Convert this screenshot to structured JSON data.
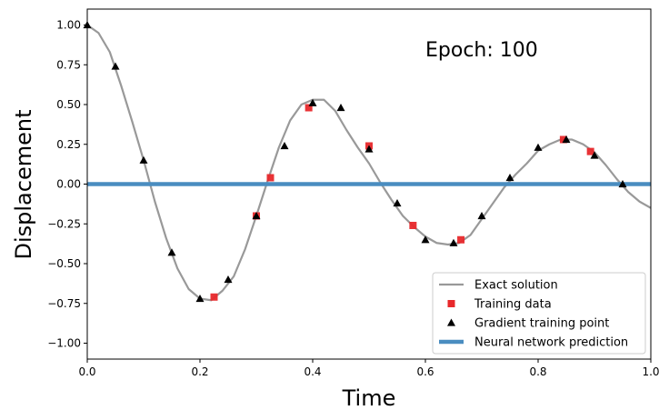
{
  "chart_data": {
    "type": "line",
    "xlabel": "Time",
    "ylabel": "Displacement",
    "xlim": [
      0.0,
      1.0
    ],
    "ylim": [
      -1.1,
      1.1
    ],
    "xticks": [
      "0.0",
      "0.2",
      "0.4",
      "0.6",
      "0.8",
      "1.0"
    ],
    "yticks": [
      "-1.00",
      "-0.75",
      "-0.50",
      "-0.25",
      "0.00",
      "0.25",
      "0.50",
      "0.75",
      "1.00"
    ],
    "annotation": "Epoch: 100",
    "grid": false,
    "legend_position": "lower-right",
    "series": [
      {
        "name": "Exact solution",
        "kind": "line",
        "color": "#999999",
        "x": [
          0.0,
          0.02,
          0.04,
          0.06,
          0.08,
          0.1,
          0.12,
          0.14,
          0.16,
          0.18,
          0.2,
          0.22,
          0.24,
          0.26,
          0.28,
          0.3,
          0.32,
          0.34,
          0.36,
          0.38,
          0.4,
          0.42,
          0.44,
          0.46,
          0.48,
          0.5,
          0.52,
          0.54,
          0.56,
          0.58,
          0.6,
          0.62,
          0.64,
          0.66,
          0.68,
          0.7,
          0.72,
          0.74,
          0.76,
          0.78,
          0.8,
          0.82,
          0.84,
          0.86,
          0.88,
          0.9,
          0.92,
          0.94,
          0.96,
          0.98,
          1.0
        ],
        "y": [
          1.0,
          0.95,
          0.83,
          0.62,
          0.39,
          0.15,
          -0.11,
          -0.34,
          -0.53,
          -0.66,
          -0.72,
          -0.73,
          -0.67,
          -0.58,
          -0.41,
          -0.2,
          0.02,
          0.23,
          0.4,
          0.5,
          0.53,
          0.53,
          0.46,
          0.34,
          0.23,
          0.13,
          0.01,
          -0.1,
          -0.2,
          -0.27,
          -0.33,
          -0.37,
          -0.38,
          -0.37,
          -0.32,
          -0.22,
          -0.12,
          -0.02,
          0.06,
          0.13,
          0.21,
          0.25,
          0.28,
          0.28,
          0.25,
          0.2,
          0.12,
          0.03,
          -0.05,
          -0.11,
          -0.15
        ]
      },
      {
        "name": "Training data",
        "kind": "square",
        "color": "#e8282b",
        "x": [
          0.225,
          0.3,
          0.325,
          0.393,
          0.5,
          0.578,
          0.663,
          0.845,
          0.893
        ],
        "y": [
          -0.71,
          -0.2,
          0.04,
          0.48,
          0.24,
          -0.26,
          -0.35,
          0.28,
          0.205
        ]
      },
      {
        "name": "Gradient training point",
        "kind": "triangle",
        "color": "#000000",
        "x": [
          0.0,
          0.05,
          0.1,
          0.15,
          0.2,
          0.25,
          0.3,
          0.35,
          0.4,
          0.45,
          0.5,
          0.55,
          0.6,
          0.65,
          0.7,
          0.75,
          0.8,
          0.85,
          0.9,
          0.95
        ],
        "y": [
          1.0,
          0.74,
          0.15,
          -0.43,
          -0.72,
          -0.6,
          -0.2,
          0.24,
          0.51,
          0.48,
          0.22,
          -0.12,
          -0.35,
          -0.37,
          -0.2,
          0.04,
          0.23,
          0.28,
          0.18,
          0.0
        ]
      },
      {
        "name": "Neural network prediction",
        "kind": "line",
        "color": "#4a8dc0",
        "x": [
          0.0,
          1.0
        ],
        "y": [
          0.0,
          0.0
        ]
      }
    ]
  }
}
